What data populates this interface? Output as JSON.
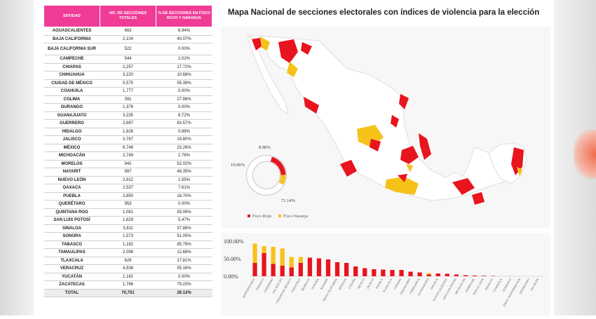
{
  "table": {
    "headers": [
      "ENTIDAD",
      "NO. DE SECCIONES TOTALES",
      "% DE SECCIONES EN FOCO ROJO Y NARANJA"
    ],
    "rows": [
      [
        "AGUASCALIENTES",
        "663",
        "6.94%"
      ],
      [
        "BAJA CALIFORNIA",
        "2,104",
        "40.07%"
      ],
      [
        "BAJA CALIFORNIA SUR",
        "522",
        "0.00%"
      ],
      [
        "CAMPECHE",
        "544",
        "2.02%"
      ],
      [
        "CHIAPAS",
        "2,257",
        "17.72%"
      ],
      [
        "CHIHUAHUA",
        "3,220",
        "10.68%"
      ],
      [
        "CIUDAD DE MÉXICO",
        "5,575",
        "55.39%"
      ],
      [
        "COAHUILA",
        "1,777",
        "0.00%"
      ],
      [
        "COLIMA",
        "391",
        "27.88%"
      ],
      [
        "DURANGO",
        "1,376",
        "0.00%"
      ],
      [
        "GUANAJUATO",
        "3,235",
        "8.72%"
      ],
      [
        "GUERRERO",
        "2,697",
        "83.57%"
      ],
      [
        "HIDALGO",
        "1,826",
        "0.88%"
      ],
      [
        "JALISCO",
        "3,787",
        "19.80%"
      ],
      [
        "MÉXICO",
        "6,748",
        "23.26%"
      ],
      [
        "MICHOACÁN",
        "2,749",
        "2.76%"
      ],
      [
        "MORELOS",
        "942",
        "52.02%"
      ],
      [
        "NAYARIT",
        "997",
        "48.35%"
      ],
      [
        "NUEVO LEÓN",
        "2,912",
        "1.55%"
      ],
      [
        "OAXACA",
        "2,537",
        "7.61%"
      ],
      [
        "PUEBLA",
        "2,850",
        "18.70%"
      ],
      [
        "QUERÉTARO",
        "953",
        "0.00%"
      ],
      [
        "QUINTANA ROO",
        "1,081",
        "93.06%"
      ],
      [
        "SAN LUIS POTOSÍ",
        "1,829",
        "5.47%"
      ],
      [
        "SINALOA",
        "3,811",
        "37.86%"
      ],
      [
        "SONORA",
        "1,573",
        "51.05%"
      ],
      [
        "TABASCO",
        "1,182",
        "85.79%"
      ],
      [
        "TAMAULIPAS",
        "2,098",
        "12.68%"
      ],
      [
        "TLAXCALA",
        "629",
        "17.81%"
      ],
      [
        "VERACRUZ",
        "4,938",
        "55.16%"
      ],
      [
        "YUCATÁN",
        "1,162",
        "0.00%"
      ],
      [
        "ZACATECAS",
        "1,786",
        "79.23%"
      ]
    ],
    "total": [
      "TOTAL",
      "70,751",
      "29.12%"
    ]
  },
  "map_title": "Mapa Nacional de secciones electorales con índices de violencia para la elección",
  "colors": {
    "rojo": "#e8141e",
    "naranja": "#f6c21a",
    "ring_gray": "#c8c8c8",
    "header_pink": "#f03c97"
  },
  "donut": {
    "slices": [
      {
        "label": "19.96%",
        "value": 19.96,
        "color": "#e8141e"
      },
      {
        "label": "8.90%",
        "value": 8.9,
        "color": "#f6c21a"
      },
      {
        "label": "71.14%",
        "value": 71.14,
        "color": "#ffffff"
      }
    ]
  },
  "legend": {
    "rojo": "Foco Rojo",
    "naranja": "Foco Naranja"
  },
  "chart_data": {
    "type": "bar",
    "stacked": true,
    "yticks": [
      "0.00%",
      "50.00%",
      "100.00%"
    ],
    "ylim": [
      0,
      100
    ],
    "categories": [
      "QUINTANA ROO",
      "TABASCO",
      "GUERRERO",
      "ZACATECAS",
      "CIUDAD DE MÉXICO",
      "VERACRUZ",
      "MORELOS",
      "SONORA",
      "NAYARIT",
      "BAJA CALIFORNIA",
      "SINALOA",
      "COLIMA",
      "MÉXICO",
      "JALISCO",
      "PUEBLA",
      "TLAXCALA",
      "CHIAPAS",
      "TAMAULIPAS",
      "CHIHUAHUA",
      "GUANAJUATO",
      "OAXACA",
      "AGUASCALIENTES",
      "SAN LUIS POTOSÍ",
      "MICHOACÁN",
      "CAMPECHE",
      "NUEVO LEÓN",
      "HIDALGO",
      "COAHUILA",
      "DURANGO",
      "BAJA CALIFORNIA SUR",
      "QUERÉTARO",
      "YUCATÁN"
    ],
    "series": [
      {
        "name": "Foco Rojo",
        "color": "#e8141e",
        "values": [
          38,
          66,
          35,
          30,
          25,
          38,
          53,
          51,
          48,
          40,
          38,
          28,
          23,
          20,
          19,
          18,
          18,
          13,
          11,
          5,
          8,
          7,
          5,
          3,
          2,
          1.5,
          1,
          0,
          0,
          0,
          0,
          0
        ]
      },
      {
        "name": "Foco Naranja",
        "color": "#f6c21a",
        "values": [
          55,
          20,
          49,
          49,
          30,
          17,
          0,
          0,
          0,
          0,
          0,
          0,
          0,
          0,
          0,
          0,
          0,
          0,
          0,
          4,
          0,
          0,
          0,
          0,
          0,
          0,
          0,
          0,
          0,
          0,
          0,
          0
        ]
      }
    ]
  }
}
